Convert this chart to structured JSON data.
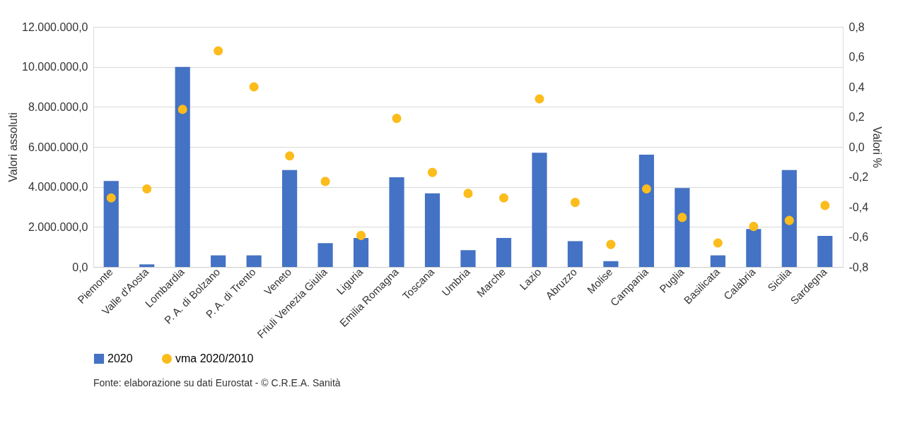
{
  "chart_data": {
    "type": "bar",
    "ylabel": "Valori assoluti",
    "y2label": "Valori %",
    "categories": [
      "Piemonte",
      "Valle d'Aosta",
      "Lombardia",
      "P. A. di Bolzano",
      "P. A. di Trento",
      "Veneto",
      "Friuli Venezia Giulia",
      "Liguria",
      "Emilia Romagna",
      "Toscana",
      "Umbria",
      "Marche",
      "Lazio",
      "Abruzzo",
      "Molise",
      "Campania",
      "Puglia",
      "Basilicata",
      "Calabria",
      "Sicilia",
      "Sardegna"
    ],
    "series": [
      {
        "name": "2020",
        "color": "#4472c4",
        "values": [
          4300000,
          130000,
          10000000,
          580000,
          580000,
          4840000,
          1190000,
          1450000,
          4480000,
          3680000,
          840000,
          1450000,
          5710000,
          1290000,
          290000,
          5610000,
          3940000,
          580000,
          1900000,
          4840000,
          1550000
        ]
      },
      {
        "name": "vma 2020/2010",
        "type": "scatter",
        "axis": "y2",
        "color": "#fbbc1c",
        "marker": "circle",
        "values": [
          -0.34,
          -0.28,
          0.25,
          0.64,
          0.4,
          -0.06,
          -0.23,
          -0.59,
          0.19,
          -0.17,
          -0.31,
          -0.34,
          0.32,
          -0.37,
          -0.65,
          -0.28,
          -0.47,
          -0.64,
          -0.53,
          -0.49,
          -0.39
        ]
      }
    ],
    "ylim": [
      0,
      12000000
    ],
    "yticks": [
      {
        "value": 0,
        "label": "0,0"
      },
      {
        "value": 2000000,
        "label": "2.000.000,0"
      },
      {
        "value": 4000000,
        "label": "4.000.000,0"
      },
      {
        "value": 6000000,
        "label": "6.000.000,0"
      },
      {
        "value": 8000000,
        "label": "8.000.000,0"
      },
      {
        "value": 10000000,
        "label": "10.000.000,0"
      },
      {
        "value": 12000000,
        "label": "12.000.000,0"
      }
    ],
    "y2lim": [
      -0.8,
      0.8
    ],
    "y2ticks": [
      {
        "value": -0.8,
        "label": "-0,8"
      },
      {
        "value": -0.6,
        "label": "-0,6"
      },
      {
        "value": -0.4,
        "label": "-0,4"
      },
      {
        "value": -0.2,
        "label": "-0,2"
      },
      {
        "value": 0,
        "label": "0,0"
      },
      {
        "value": 0.2,
        "label": "0,2"
      },
      {
        "value": 0.4,
        "label": "0,4"
      },
      {
        "value": 0.6,
        "label": "0,6"
      },
      {
        "value": 0.8,
        "label": "0,8"
      }
    ],
    "grid": "y",
    "legend": "bottom",
    "annotations": [
      "Fonte: elaborazione su dati Eurostat - © C.R.E.A. Sanità"
    ]
  }
}
